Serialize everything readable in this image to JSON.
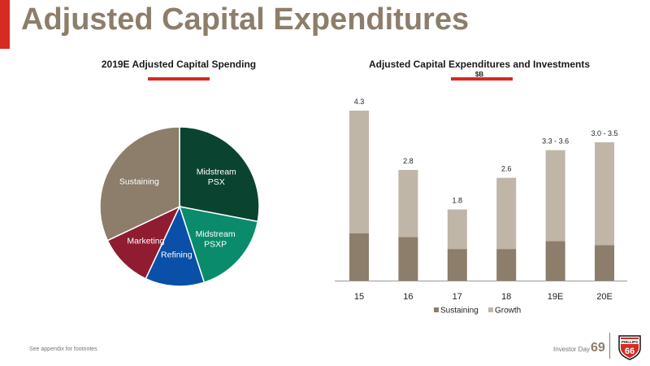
{
  "page": {
    "title": "Adjusted Capital Expenditures",
    "footnote": "See appendix for footnotes",
    "event": "Investor Day",
    "page_number": "69",
    "logo_text": "PHILLIPS",
    "logo_number": "66"
  },
  "colors": {
    "accent": "#d72a20",
    "title": "#8c7e6a"
  },
  "chart_data": [
    {
      "type": "pie",
      "title": "2019E Adjusted Capital Spending",
      "slices": [
        {
          "label": "Midstream PSX",
          "lines": [
            "Midstream",
            "PSX"
          ],
          "value": 28,
          "color": "#0b4331"
        },
        {
          "label": "Midstream PSXP",
          "lines": [
            "Midstream",
            "PSXP"
          ],
          "value": 17,
          "color": "#0a8c6c"
        },
        {
          "label": "Refining",
          "lines": [
            "Refining"
          ],
          "value": 12,
          "color": "#0a50a8"
        },
        {
          "label": "Marketing",
          "lines": [
            "Marketing"
          ],
          "value": 11,
          "color": "#8f1c30"
        },
        {
          "label": "Sustaining",
          "lines": [
            "Sustaining"
          ],
          "value": 32,
          "color": "#8c7e6a"
        }
      ]
    },
    {
      "type": "bar",
      "title": "Adjusted Capital Expenditures and Investments",
      "subtitle": "$B",
      "categories": [
        "15",
        "16",
        "17",
        "18",
        "19E",
        "20E"
      ],
      "series": [
        {
          "name": "Sustaining",
          "color": "#8c7e6a",
          "values": [
            1.2,
            1.1,
            0.8,
            0.8,
            1.0,
            0.9
          ]
        },
        {
          "name": "Growth",
          "color": "#c0b6a8",
          "values": [
            3.1,
            1.7,
            1.0,
            1.8,
            2.3,
            2.6
          ]
        }
      ],
      "totals_labels": [
        "4.3",
        "2.8",
        "1.8",
        "2.6",
        "3.3 - 3.6",
        "3.0 - 3.5"
      ],
      "stacked": true,
      "ylim": [
        0,
        4.3
      ],
      "grid": false,
      "legend": "bottom"
    }
  ]
}
